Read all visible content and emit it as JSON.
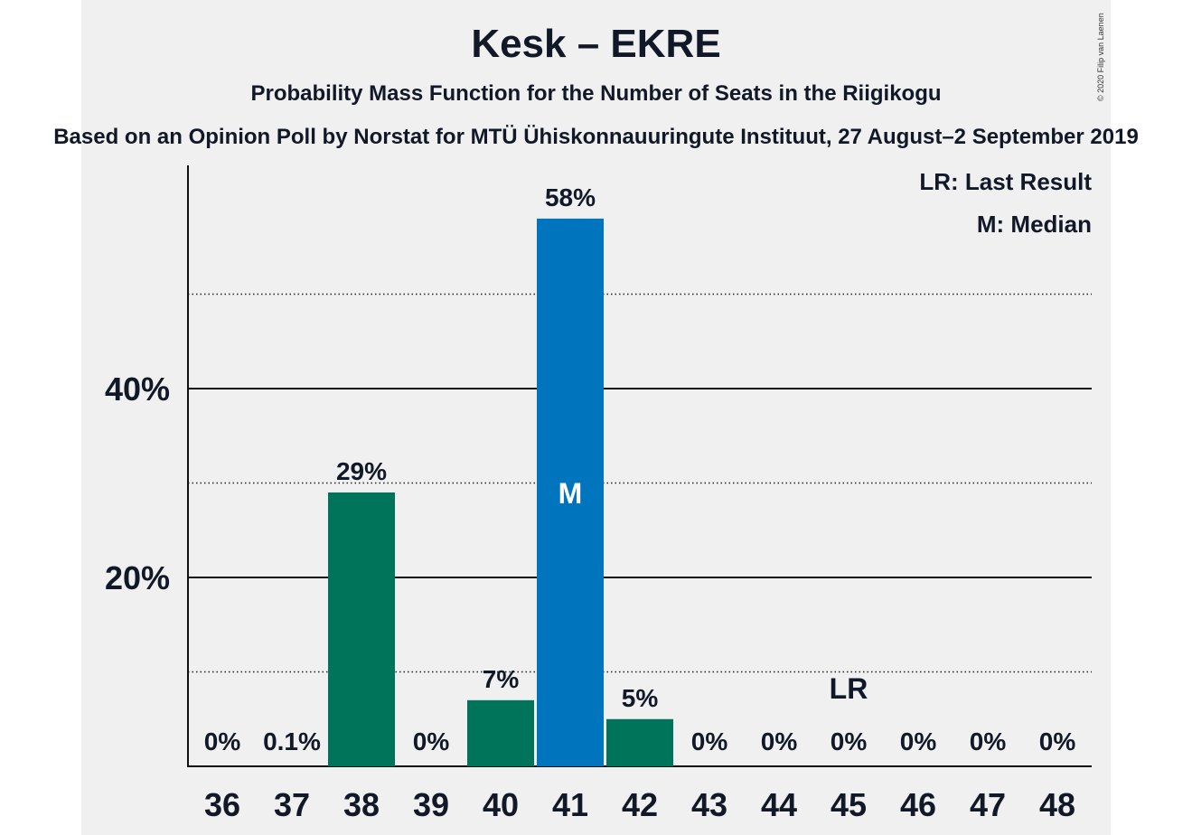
{
  "title": "Kesk – EKRE",
  "subtitle": "Probability Mass Function for the Number of Seats in the Riigikogu",
  "source": "Based on an Opinion Poll by Norstat for MTÜ Ühiskonnauuringute Instituut, 27 August–2 September 2019",
  "copyright": "© 2020 Filip van Laenen",
  "legend": {
    "last_result": "LR: Last Result",
    "median": "M: Median"
  },
  "colors": {
    "bar": "#00745a",
    "median_bar": "#0074bd",
    "background": "#f0f0f0"
  },
  "chart_data": {
    "type": "bar",
    "categories": [
      "36",
      "37",
      "38",
      "39",
      "40",
      "41",
      "42",
      "43",
      "44",
      "45",
      "46",
      "47",
      "48"
    ],
    "values": [
      0,
      0.1,
      29,
      0,
      7,
      58,
      5,
      0,
      0,
      0,
      0,
      0,
      0
    ],
    "value_labels": [
      "0%",
      "0.1%",
      "29%",
      "0%",
      "7%",
      "58%",
      "5%",
      "0%",
      "0%",
      "0%",
      "0%",
      "0%",
      "0%"
    ],
    "median_category": "41",
    "median_label": "M",
    "last_result_category": "45",
    "last_result_label": "LR",
    "y_ticks": [
      {
        "value": 20,
        "label": "20%"
      },
      {
        "value": 40,
        "label": "40%"
      }
    ],
    "y_minor_gridlines": [
      10,
      30,
      50
    ],
    "ylim": [
      0,
      63
    ],
    "legend_position": "top-right"
  }
}
